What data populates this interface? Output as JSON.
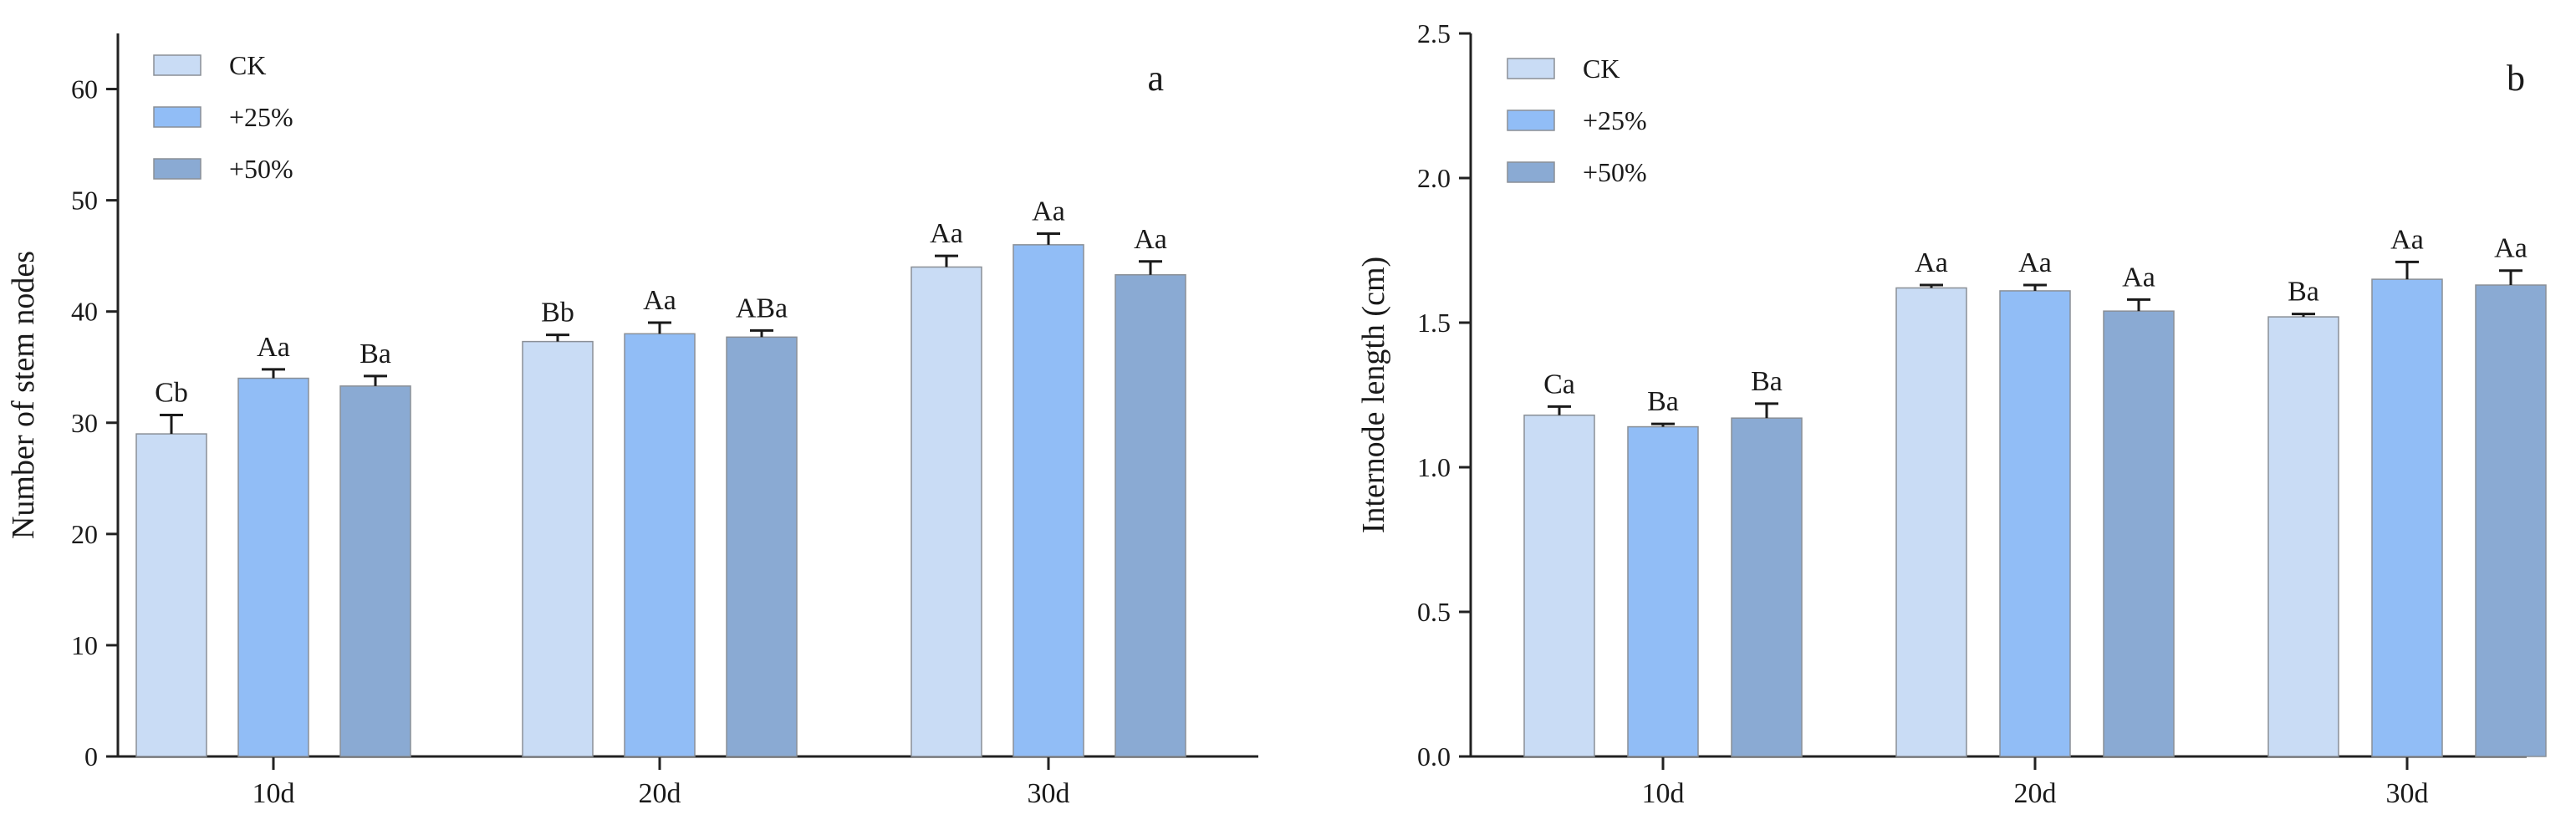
{
  "chart_data": [
    {
      "type": "bar",
      "panel": "a",
      "ylabel": "Number of stem nodes",
      "xlabel": "",
      "ylim": [
        0,
        65
      ],
      "yticks": [
        0,
        10,
        20,
        30,
        40,
        50,
        60
      ],
      "yticklabels": [
        "0",
        "10",
        "20",
        "30",
        "40",
        "50",
        "60"
      ],
      "categories": [
        "10d",
        "20d",
        "30d"
      ],
      "legend_position": "top-left",
      "series": [
        {
          "name": "CK",
          "color": "#c9dcf5",
          "values": [
            29.0,
            37.3,
            44.0
          ],
          "errors": [
            1.7,
            0.6,
            1.0
          ],
          "labels": [
            "Cb",
            "Bb",
            "Aa"
          ]
        },
        {
          "name": "+25%",
          "color": "#91bdf6",
          "values": [
            34.0,
            38.0,
            46.0
          ],
          "errors": [
            0.8,
            1.0,
            1.0
          ],
          "labels": [
            "Aa",
            "Aa",
            "Aa"
          ]
        },
        {
          "name": "+50%",
          "color": "#8aaad3",
          "values": [
            33.3,
            37.7,
            43.3
          ],
          "errors": [
            0.9,
            0.6,
            1.2
          ],
          "labels": [
            "Ba",
            "ABa",
            "Aa"
          ]
        }
      ]
    },
    {
      "type": "bar",
      "panel": "b",
      "ylabel": "Internode length (cm)",
      "xlabel": "",
      "ylim": [
        0,
        2.5
      ],
      "yticks": [
        0,
        0.5,
        1.0,
        1.5,
        2.0,
        2.5
      ],
      "yticklabels": [
        "0.0",
        "0.5",
        "1.0",
        "1.5",
        "2.0",
        "2.5"
      ],
      "categories": [
        "10d",
        "20d",
        "30d"
      ],
      "legend_position": "top-left",
      "series": [
        {
          "name": "CK",
          "color": "#c9dcf5",
          "values": [
            1.18,
            1.62,
            1.52
          ],
          "errors": [
            0.03,
            0.01,
            0.01
          ],
          "labels": [
            "Ca",
            "Aa",
            "Ba"
          ]
        },
        {
          "name": "+25%",
          "color": "#91bdf6",
          "values": [
            1.14,
            1.61,
            1.65
          ],
          "errors": [
            0.01,
            0.02,
            0.06
          ],
          "labels": [
            "Ba",
            "Aa",
            "Aa"
          ]
        },
        {
          "name": "+50%",
          "color": "#8aaad3",
          "values": [
            1.17,
            1.54,
            1.63
          ],
          "errors": [
            0.05,
            0.04,
            0.05
          ],
          "labels": [
            "Ba",
            "Aa",
            "Aa"
          ]
        }
      ]
    }
  ]
}
